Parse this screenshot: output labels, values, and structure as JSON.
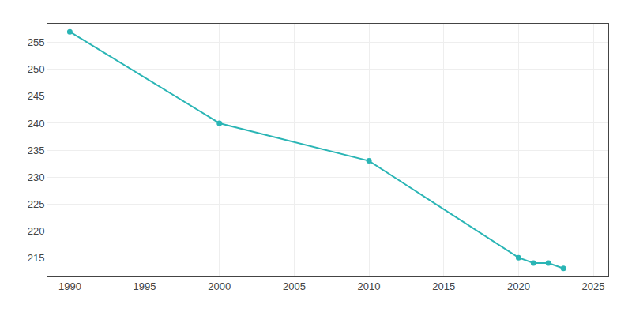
{
  "chart_data": {
    "type": "line",
    "x": [
      1990,
      2000,
      2010,
      2020,
      2021,
      2022,
      2023
    ],
    "values": [
      257,
      240,
      233,
      215,
      214,
      214,
      213
    ],
    "color": "#2ab5b5",
    "marker": "circle",
    "line_style": "solid",
    "xlim": [
      1988.5,
      2026
    ],
    "ylim": [
      211.5,
      258.5
    ],
    "xticks": [
      1990,
      1995,
      2000,
      2005,
      2010,
      2015,
      2020,
      2025
    ],
    "yticks": [
      215,
      220,
      225,
      230,
      235,
      240,
      245,
      250,
      255
    ],
    "grid": true
  }
}
